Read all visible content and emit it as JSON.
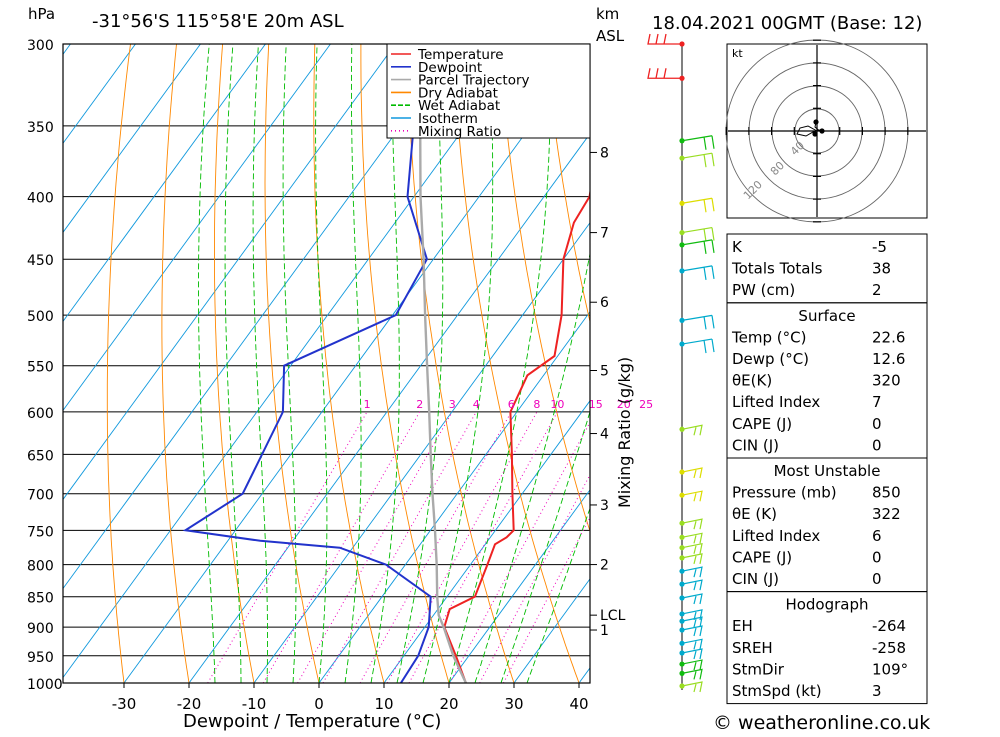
{
  "header": {
    "units_left": "hPa",
    "location": "-31°56'S  115°58'E  20m  ASL",
    "units_km": "km",
    "units_asl": "ASL",
    "datetime": "18.04.2021  00GMT  (Base: 12)"
  },
  "footer": {
    "xlabel": "Dewpoint / Temperature (°C)",
    "copyright": "© weatheronline.co.uk"
  },
  "colors": {
    "temperature": "#ee2222",
    "dewpoint": "#2233cc",
    "parcel": "#aaaaaa",
    "dry_adiabat": "#ff8800",
    "wet_adiabat": "#00bb00",
    "isotherm": "#1199dd",
    "mixing_ratio": "#ee00bb"
  },
  "legend": {
    "temperature": "Temperature",
    "dewpoint": "Dewpoint",
    "parcel": "Parcel Trajectory",
    "dry": "Dry Adiabat",
    "wet": "Wet Adiabat",
    "isotherm": "Isotherm",
    "mixing": "Mixing Ratio"
  },
  "chart_data": {
    "type": "line",
    "subtype": "skew-T log-P",
    "xlabel": "Dewpoint / Temperature (°C)",
    "ylabel": "hPa",
    "secondary_ylabel": "Mixing Ratio (g/kg)",
    "y_scale": "log",
    "ylim": [
      1000,
      300
    ],
    "xlim": [
      -40,
      40
    ],
    "pressure_ticks": [
      300,
      350,
      400,
      450,
      500,
      550,
      600,
      650,
      700,
      750,
      800,
      850,
      900,
      950,
      1000
    ],
    "temperature_ticks": [
      -30,
      -20,
      -10,
      0,
      10,
      20,
      30,
      40
    ],
    "km_ticks": [
      {
        "label": "8",
        "p": 368
      },
      {
        "label": "7",
        "p": 428
      },
      {
        "label": "6",
        "p": 488
      },
      {
        "label": "5",
        "p": 555
      },
      {
        "label": "4",
        "p": 625
      },
      {
        "label": "3",
        "p": 715
      },
      {
        "label": "2",
        "p": 800
      },
      {
        "label": "LCL",
        "p": 880
      },
      {
        "label": "1",
        "p": 905
      }
    ],
    "mixing_ratio_labels": [
      "1",
      "2",
      "3",
      "4",
      "6",
      "8",
      "10",
      "15",
      "20",
      "25"
    ],
    "series": [
      {
        "name": "Temperature",
        "key": "temperature",
        "points": [
          [
            1000,
            22.6
          ],
          [
            950,
            18
          ],
          [
            900,
            13
          ],
          [
            870,
            11.8
          ],
          [
            850,
            14.3
          ],
          [
            800,
            12.6
          ],
          [
            770,
            11.5
          ],
          [
            760,
            12.5
          ],
          [
            750,
            12.8
          ],
          [
            700,
            8.5
          ],
          [
            650,
            4
          ],
          [
            600,
            -1
          ],
          [
            560,
            -2.5
          ],
          [
            540,
            -0.5
          ],
          [
            500,
            -4
          ],
          [
            450,
            -10
          ],
          [
            420,
            -12.5
          ],
          [
            400,
            -13
          ],
          [
            350,
            -19
          ],
          [
            300,
            -26
          ]
        ]
      },
      {
        "name": "Dewpoint",
        "key": "dewpoint",
        "points": [
          [
            1000,
            12.6
          ],
          [
            950,
            12.2
          ],
          [
            900,
            10.6
          ],
          [
            850,
            7.5
          ],
          [
            800,
            -3
          ],
          [
            775,
            -12
          ],
          [
            765,
            -25
          ],
          [
            750,
            -37.7
          ],
          [
            700,
            -33
          ],
          [
            600,
            -36
          ],
          [
            550,
            -41
          ],
          [
            500,
            -29.5
          ],
          [
            450,
            -31
          ],
          [
            400,
            -41
          ],
          [
            350,
            -48
          ],
          [
            300,
            -56
          ]
        ]
      },
      {
        "name": "Parcel Trajectory",
        "key": "parcel",
        "points": [
          [
            1000,
            22.6
          ],
          [
            950,
            17.6
          ],
          [
            900,
            12.9
          ],
          [
            880,
            10.8
          ],
          [
            850,
            8.5
          ],
          [
            800,
            4.8
          ],
          [
            750,
            0.7
          ],
          [
            700,
            -3.8
          ],
          [
            650,
            -8.5
          ],
          [
            600,
            -13.5
          ],
          [
            550,
            -19
          ],
          [
            500,
            -25
          ],
          [
            450,
            -31.5
          ],
          [
            400,
            -39
          ],
          [
            350,
            -47
          ],
          [
            320,
            -53
          ]
        ]
      }
    ],
    "wind_barbs": [
      {
        "p": 300,
        "color": "#ee2222"
      },
      {
        "p": 320,
        "color": "#ee2222"
      },
      {
        "p": 360,
        "color": "#11bb11"
      },
      {
        "p": 372,
        "color": "#99dd22"
      },
      {
        "p": 405,
        "color": "#dddd00"
      },
      {
        "p": 428,
        "color": "#99dd22"
      },
      {
        "p": 438,
        "color": "#11bb11"
      },
      {
        "p": 460,
        "color": "#00aacc"
      },
      {
        "p": 505,
        "color": "#00aacc"
      },
      {
        "p": 528,
        "color": "#00aacc"
      },
      {
        "p": 620,
        "color": "#99dd22"
      },
      {
        "p": 672,
        "color": "#dddd00"
      },
      {
        "p": 702,
        "color": "#dddd00"
      },
      {
        "p": 740,
        "color": "#99dd22"
      },
      {
        "p": 760,
        "color": "#99dd22"
      },
      {
        "p": 775,
        "color": "#99dd22"
      },
      {
        "p": 790,
        "color": "#99dd22"
      },
      {
        "p": 810,
        "color": "#00aacc"
      },
      {
        "p": 830,
        "color": "#00aacc"
      },
      {
        "p": 852,
        "color": "#00aacc"
      },
      {
        "p": 878,
        "color": "#00aacc"
      },
      {
        "p": 890,
        "color": "#00aacc"
      },
      {
        "p": 905,
        "color": "#00aacc"
      },
      {
        "p": 928,
        "color": "#00aacc"
      },
      {
        "p": 945,
        "color": "#00aacc"
      },
      {
        "p": 965,
        "color": "#11bb11"
      },
      {
        "p": 982,
        "color": "#11bb11"
      },
      {
        "p": 1000,
        "color": "#99dd22"
      }
    ],
    "hodograph": {
      "unit": "kt",
      "ring_labels": [
        "40",
        "80",
        "120"
      ]
    }
  },
  "indices": [
    {
      "label": "K",
      "value": "-5"
    },
    {
      "label": "Totals Totals",
      "value": "38"
    },
    {
      "label": "PW (cm)",
      "value": "2"
    }
  ],
  "surface": {
    "title": "Surface",
    "rows": [
      {
        "label": "Temp (°C)",
        "value": "22.6"
      },
      {
        "label": "Dewp (°C)",
        "value": "12.6"
      },
      {
        "label": "θE(K)",
        "value": "320"
      },
      {
        "label": "Lifted Index",
        "value": "7"
      },
      {
        "label": "CAPE (J)",
        "value": "0"
      },
      {
        "label": "CIN (J)",
        "value": "0"
      }
    ]
  },
  "most_unstable": {
    "title": "Most Unstable",
    "rows": [
      {
        "label": "Pressure (mb)",
        "value": "850"
      },
      {
        "label": "θE (K)",
        "value": "322"
      },
      {
        "label": "Lifted Index",
        "value": "6"
      },
      {
        "label": "CAPE (J)",
        "value": "0"
      },
      {
        "label": "CIN (J)",
        "value": "0"
      }
    ]
  },
  "hodograph_table": {
    "title": "Hodograph",
    "rows": [
      {
        "label": "EH",
        "value": "-264"
      },
      {
        "label": "SREH",
        "value": "-258"
      },
      {
        "label": "StmDir",
        "value": "109°"
      },
      {
        "label": "StmSpd (kt)",
        "value": "3"
      }
    ]
  }
}
